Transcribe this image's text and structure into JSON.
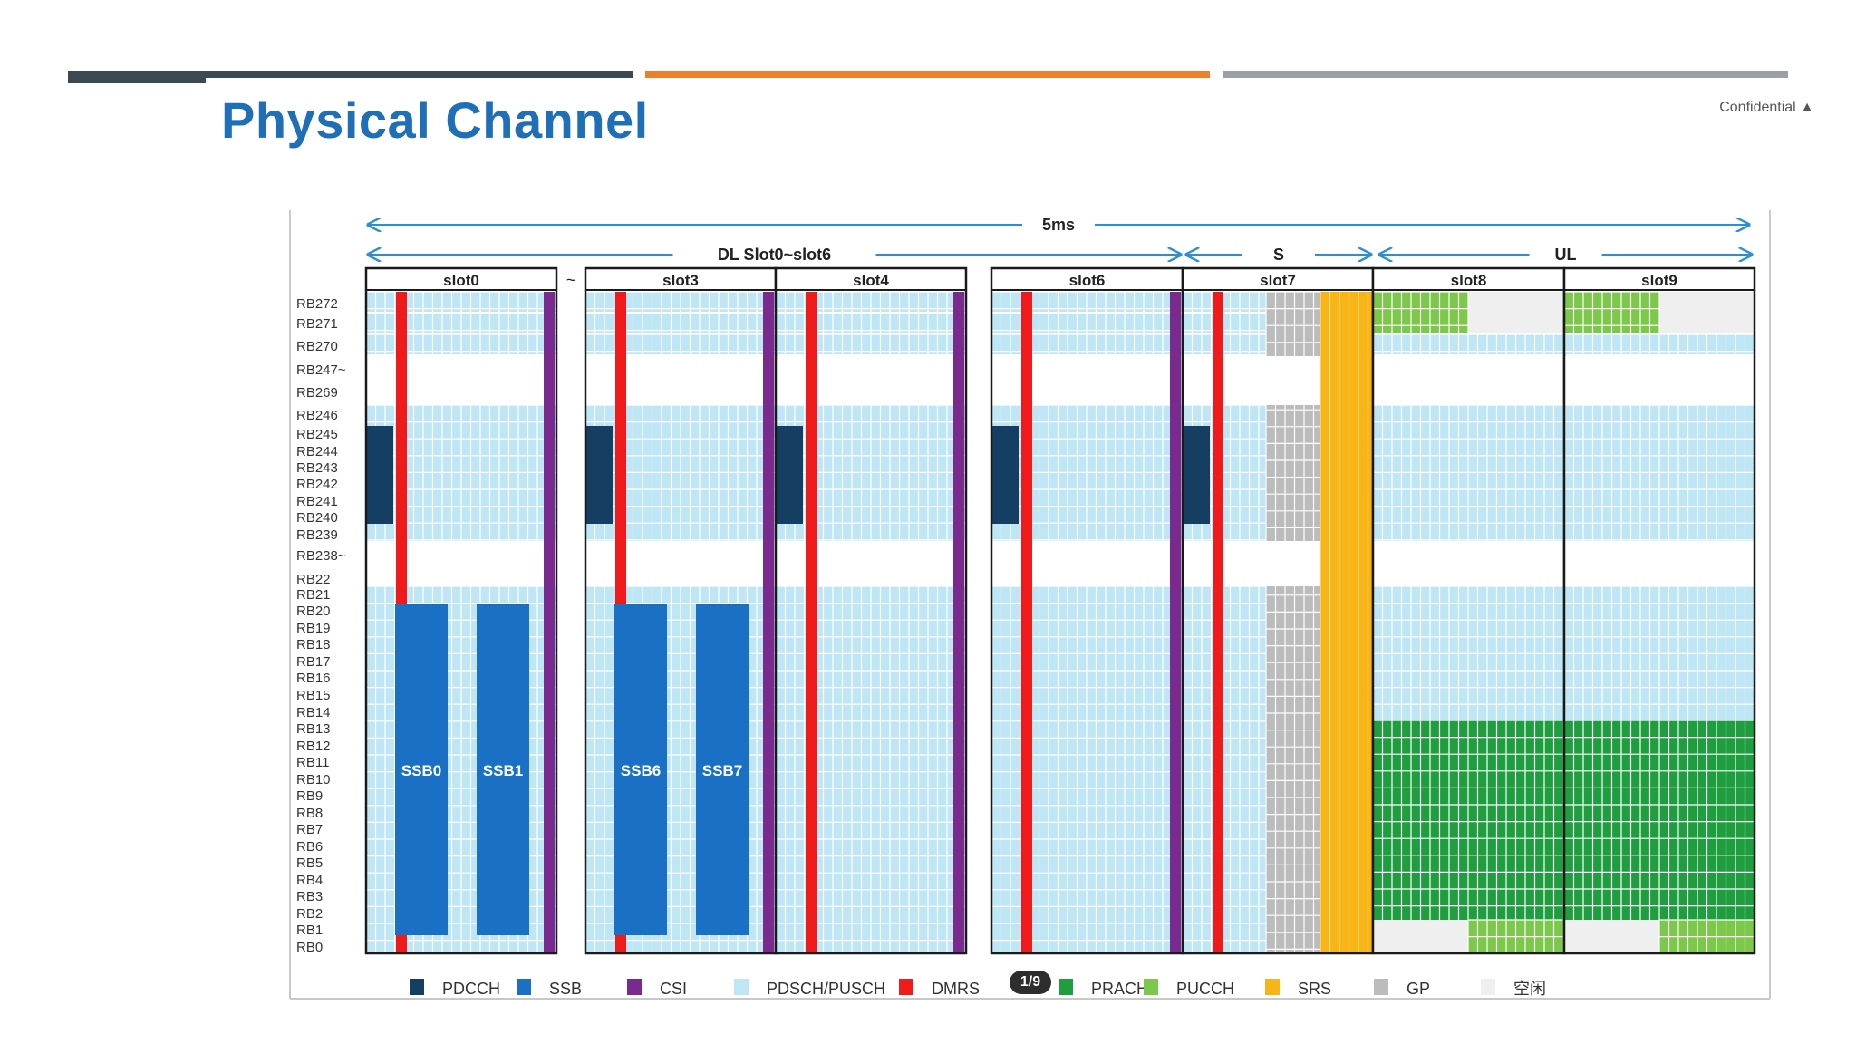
{
  "header": {
    "title": "Physical Channel",
    "confidential": "Confidential ▲",
    "bar_colors": [
      "#3b4a52",
      "#3b4a52",
      "#ee7f2d",
      "#9aa1a6"
    ]
  },
  "diagram": {
    "span_5ms": "5ms",
    "span_dl": "DL Slot0~slot6",
    "span_s": "S",
    "span_ul": "UL",
    "gap_tilde": "~",
    "slots": [
      {
        "label": "slot0",
        "kind": "dl",
        "ssb": [
          "SSB0",
          "SSB1"
        ],
        "pdcch": true
      },
      {
        "label": "slot3",
        "kind": "dl",
        "ssb": [
          "SSB6",
          "SSB7"
        ],
        "pdcch": true
      },
      {
        "label": "slot4",
        "kind": "dl",
        "ssb": [],
        "pdcch": true
      },
      {
        "label": "slot6",
        "kind": "dl",
        "ssb": [],
        "pdcch": true
      },
      {
        "label": "slot7",
        "kind": "s",
        "ssb": [],
        "pdcch": true
      },
      {
        "label": "slot8",
        "kind": "ul",
        "pucch_top": "left",
        "pucch_bottom": "right"
      },
      {
        "label": "slot9",
        "kind": "ul",
        "pucch_top": "left",
        "pucch_bottom": "right"
      }
    ],
    "rb_labels": [
      "RB272",
      "RB271",
      "RB270",
      "RB247~",
      "RB269",
      "RB246",
      "RB245",
      "RB244",
      "RB243",
      "RB242",
      "RB241",
      "RB240",
      "RB239",
      "RB238~",
      "RB22",
      "RB21",
      "RB20",
      "RB19",
      "RB18",
      "RB17",
      "RB16",
      "RB15",
      "RB14",
      "RB13",
      "RB12",
      "RB11",
      "RB10",
      "RB9",
      "RB8",
      "RB7",
      "RB6",
      "RB5",
      "RB4",
      "RB3",
      "RB2",
      "RB1",
      "RB0"
    ],
    "legend": [
      {
        "name": "PDCCH",
        "color": "#143e62"
      },
      {
        "name": "SSB",
        "color": "#1a70c4"
      },
      {
        "name": "CSI",
        "color": "#7a2a8e"
      },
      {
        "name": "PDSCH/PUSCH",
        "color": "#bfe6f5"
      },
      {
        "name": "DMRS",
        "color": "#f01a1a"
      },
      {
        "name": "PRACH",
        "color": "#1e9e3e"
      },
      {
        "name": "PUCCH",
        "color": "#7cc84a"
      },
      {
        "name": "SRS",
        "color": "#f7b517"
      },
      {
        "name": "GP",
        "color": "#bcbcbc"
      },
      {
        "name": "空闲",
        "color": "#efefef"
      }
    ],
    "colors": {
      "pdsch": "#bfe6f5",
      "pdcch": "#143e62",
      "ssb": "#1a70c4",
      "csi": "#7a2a8e",
      "dmrs": "#f01a1a",
      "prach": "#1e9e3e",
      "pucch": "#7cc84a",
      "srs": "#f7b517",
      "gp": "#bcbcbc",
      "idle": "#efefef",
      "arrow": "#2b8fd4"
    }
  },
  "pager": "1/9"
}
